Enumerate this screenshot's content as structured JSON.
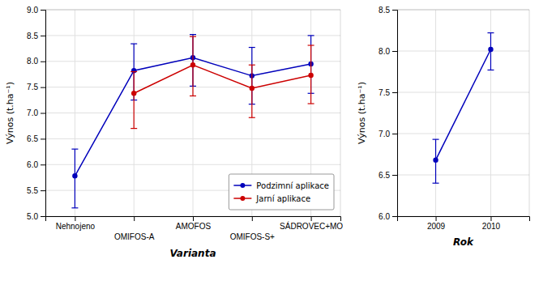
{
  "chart_data": [
    {
      "type": "line",
      "xlabel": "Varianta",
      "ylabel": "Výnos (t.ha⁻¹)",
      "categories": [
        "Nehnojeno",
        "OMIFOS-A",
        "AMOFOS",
        "OMIFOS-S+",
        "SÁDROVEC+MO"
      ],
      "series": [
        {
          "name": "Podzimní aplikace",
          "color": "#0000bb",
          "values": [
            5.78,
            7.82,
            8.07,
            7.72,
            7.95
          ],
          "errors_minus": [
            0.62,
            0.57,
            0.55,
            0.55,
            0.57
          ],
          "errors_plus": [
            0.52,
            0.52,
            0.45,
            0.55,
            0.55
          ]
        },
        {
          "name": "Jarní aplikace",
          "color": "#cc0000",
          "values": [
            null,
            7.38,
            7.93,
            7.48,
            7.73
          ],
          "errors_minus": [
            null,
            0.68,
            0.6,
            0.57,
            0.55
          ],
          "errors_plus": [
            null,
            0.42,
            0.55,
            0.45,
            0.58
          ]
        }
      ],
      "ylim": [
        5.0,
        9.0
      ],
      "yticks": [
        {
          "value": 5.0,
          "label": "5.0"
        },
        5.5,
        {
          "value": 6.0,
          "label": "6.0"
        },
        6.5,
        {
          "value": 7.0,
          "label": "7.0"
        },
        7.5,
        {
          "value": 8.0,
          "label": "8.0"
        },
        8.5,
        {
          "value": 9.0,
          "label": "9.0"
        }
      ],
      "grid": true,
      "legend": "lower right"
    },
    {
      "type": "line",
      "xlabel": "Rok",
      "ylabel": "Výnos (t.ha⁻¹)",
      "x": [
        2009,
        2010
      ],
      "series": [
        {
          "color": "#0000bb",
          "values": [
            6.68,
            8.02
          ],
          "errors_minus": [
            0.28,
            0.25
          ],
          "errors_plus": [
            0.25,
            0.2
          ]
        }
      ],
      "xlim": [
        2008.3,
        2010.7
      ],
      "xticks": [
        2009,
        2010
      ],
      "ylim": [
        6.0,
        8.5
      ],
      "yticks": [
        {
          "value": 6.0,
          "label": "6.0"
        },
        6.5,
        {
          "value": 7.0,
          "label": "7.0"
        },
        7.5,
        {
          "value": 8.0,
          "label": "8.0"
        },
        {
          "value": 8.5,
          "label": "8.5"
        }
      ],
      "grid": true
    }
  ]
}
